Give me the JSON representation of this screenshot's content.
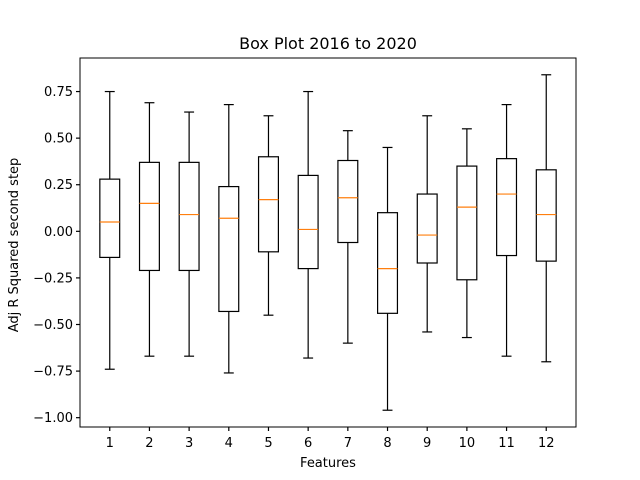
{
  "chart_data": {
    "type": "box",
    "title": "Box Plot 2016 to 2020",
    "xlabel": "Features",
    "ylabel": "Adj R Squared second step",
    "categories": [
      "1",
      "2",
      "3",
      "4",
      "5",
      "6",
      "7",
      "8",
      "9",
      "10",
      "11",
      "12"
    ],
    "ylim": [
      -1.05,
      0.93
    ],
    "yticks": [
      0.75,
      0.5,
      0.25,
      0.0,
      -0.25,
      -0.5,
      -0.75,
      -1.0
    ],
    "ytick_labels": [
      "0.75",
      "0.50",
      "0.25",
      "0.00",
      "−0.25",
      "−0.50",
      "−0.75",
      "−1.00"
    ],
    "boxes": [
      {
        "whisker_low": -0.74,
        "q1": -0.14,
        "median": 0.05,
        "q3": 0.28,
        "whisker_high": 0.75
      },
      {
        "whisker_low": -0.67,
        "q1": -0.21,
        "median": 0.15,
        "q3": 0.37,
        "whisker_high": 0.69
      },
      {
        "whisker_low": -0.67,
        "q1": -0.21,
        "median": 0.09,
        "q3": 0.37,
        "whisker_high": 0.64
      },
      {
        "whisker_low": -0.76,
        "q1": -0.43,
        "median": 0.07,
        "q3": 0.24,
        "whisker_high": 0.68
      },
      {
        "whisker_low": -0.45,
        "q1": -0.11,
        "median": 0.17,
        "q3": 0.4,
        "whisker_high": 0.62
      },
      {
        "whisker_low": -0.68,
        "q1": -0.2,
        "median": 0.01,
        "q3": 0.3,
        "whisker_high": 0.75
      },
      {
        "whisker_low": -0.6,
        "q1": -0.06,
        "median": 0.18,
        "q3": 0.38,
        "whisker_high": 0.54
      },
      {
        "whisker_low": -0.96,
        "q1": -0.44,
        "median": -0.2,
        "q3": 0.1,
        "whisker_high": 0.45
      },
      {
        "whisker_low": -0.54,
        "q1": -0.17,
        "median": -0.02,
        "q3": 0.2,
        "whisker_high": 0.62
      },
      {
        "whisker_low": -0.57,
        "q1": -0.26,
        "median": 0.13,
        "q3": 0.35,
        "whisker_high": 0.55
      },
      {
        "whisker_low": -0.67,
        "q1": -0.13,
        "median": 0.2,
        "q3": 0.39,
        "whisker_high": 0.68
      },
      {
        "whisker_low": -0.7,
        "q1": -0.16,
        "median": 0.09,
        "q3": 0.33,
        "whisker_high": 0.84
      }
    ],
    "colors": {
      "box": "#000000",
      "median": "#ff7f0e",
      "axes": "#000000"
    },
    "grid": false,
    "legend": "none"
  }
}
